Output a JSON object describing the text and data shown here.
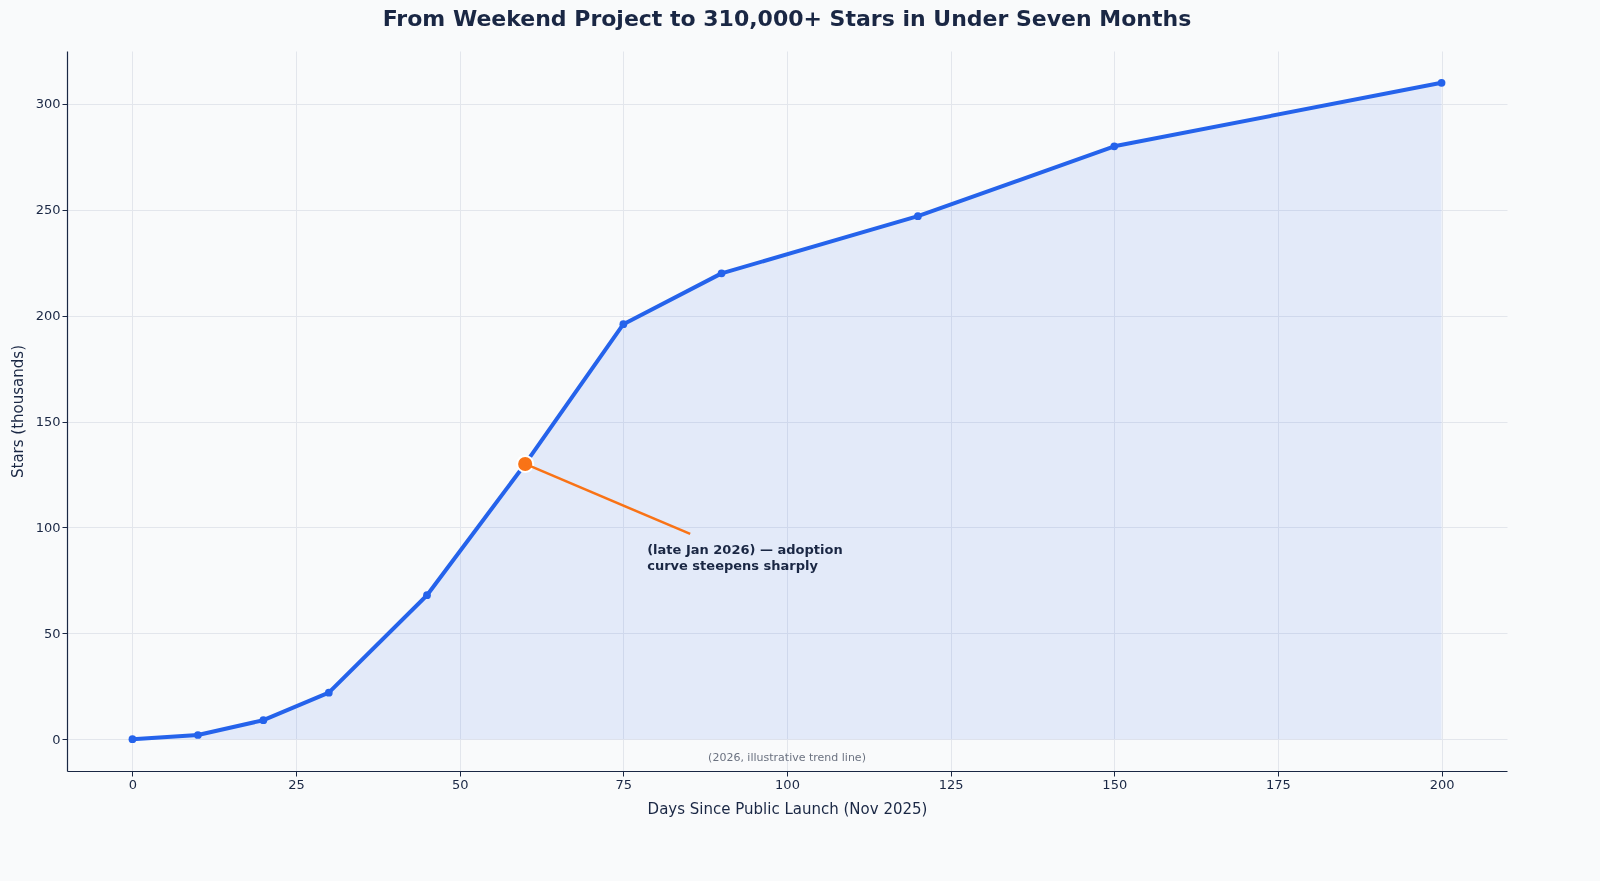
{
  "chart_data": {
    "type": "area",
    "title": "From Weekend Project to 310,000+ Stars in Under Seven Months",
    "xlabel": "Days Since Public Launch (Nov 2025)",
    "ylabel": "Stars (thousands)",
    "x": [
      0,
      10,
      20,
      30,
      45,
      60,
      75,
      90,
      120,
      150,
      200
    ],
    "series": [
      {
        "color": "#2563eb",
        "values": [
          0,
          2,
          9,
          22,
          68,
          130,
          196,
          220,
          247,
          280,
          310
        ]
      },
      {
        "type": "scatter",
        "color": "#f97316",
        "x": [
          60
        ],
        "values": [
          130
        ]
      }
    ],
    "xlim": [
      -10,
      210
    ],
    "xticks": [
      0,
      25,
      50,
      75,
      100,
      125,
      150,
      175,
      200
    ],
    "ylim": [
      -15,
      325
    ],
    "yticks": [
      0,
      50,
      100,
      150,
      200,
      250,
      300
    ],
    "grid": true,
    "marker": "circle",
    "annotations": [
      {
        "text": "(late Jan 2026) — adoption curve steepens sharply",
        "x": 60,
        "y": 130
      },
      "(2026, illustrative trend line)"
    ]
  }
}
